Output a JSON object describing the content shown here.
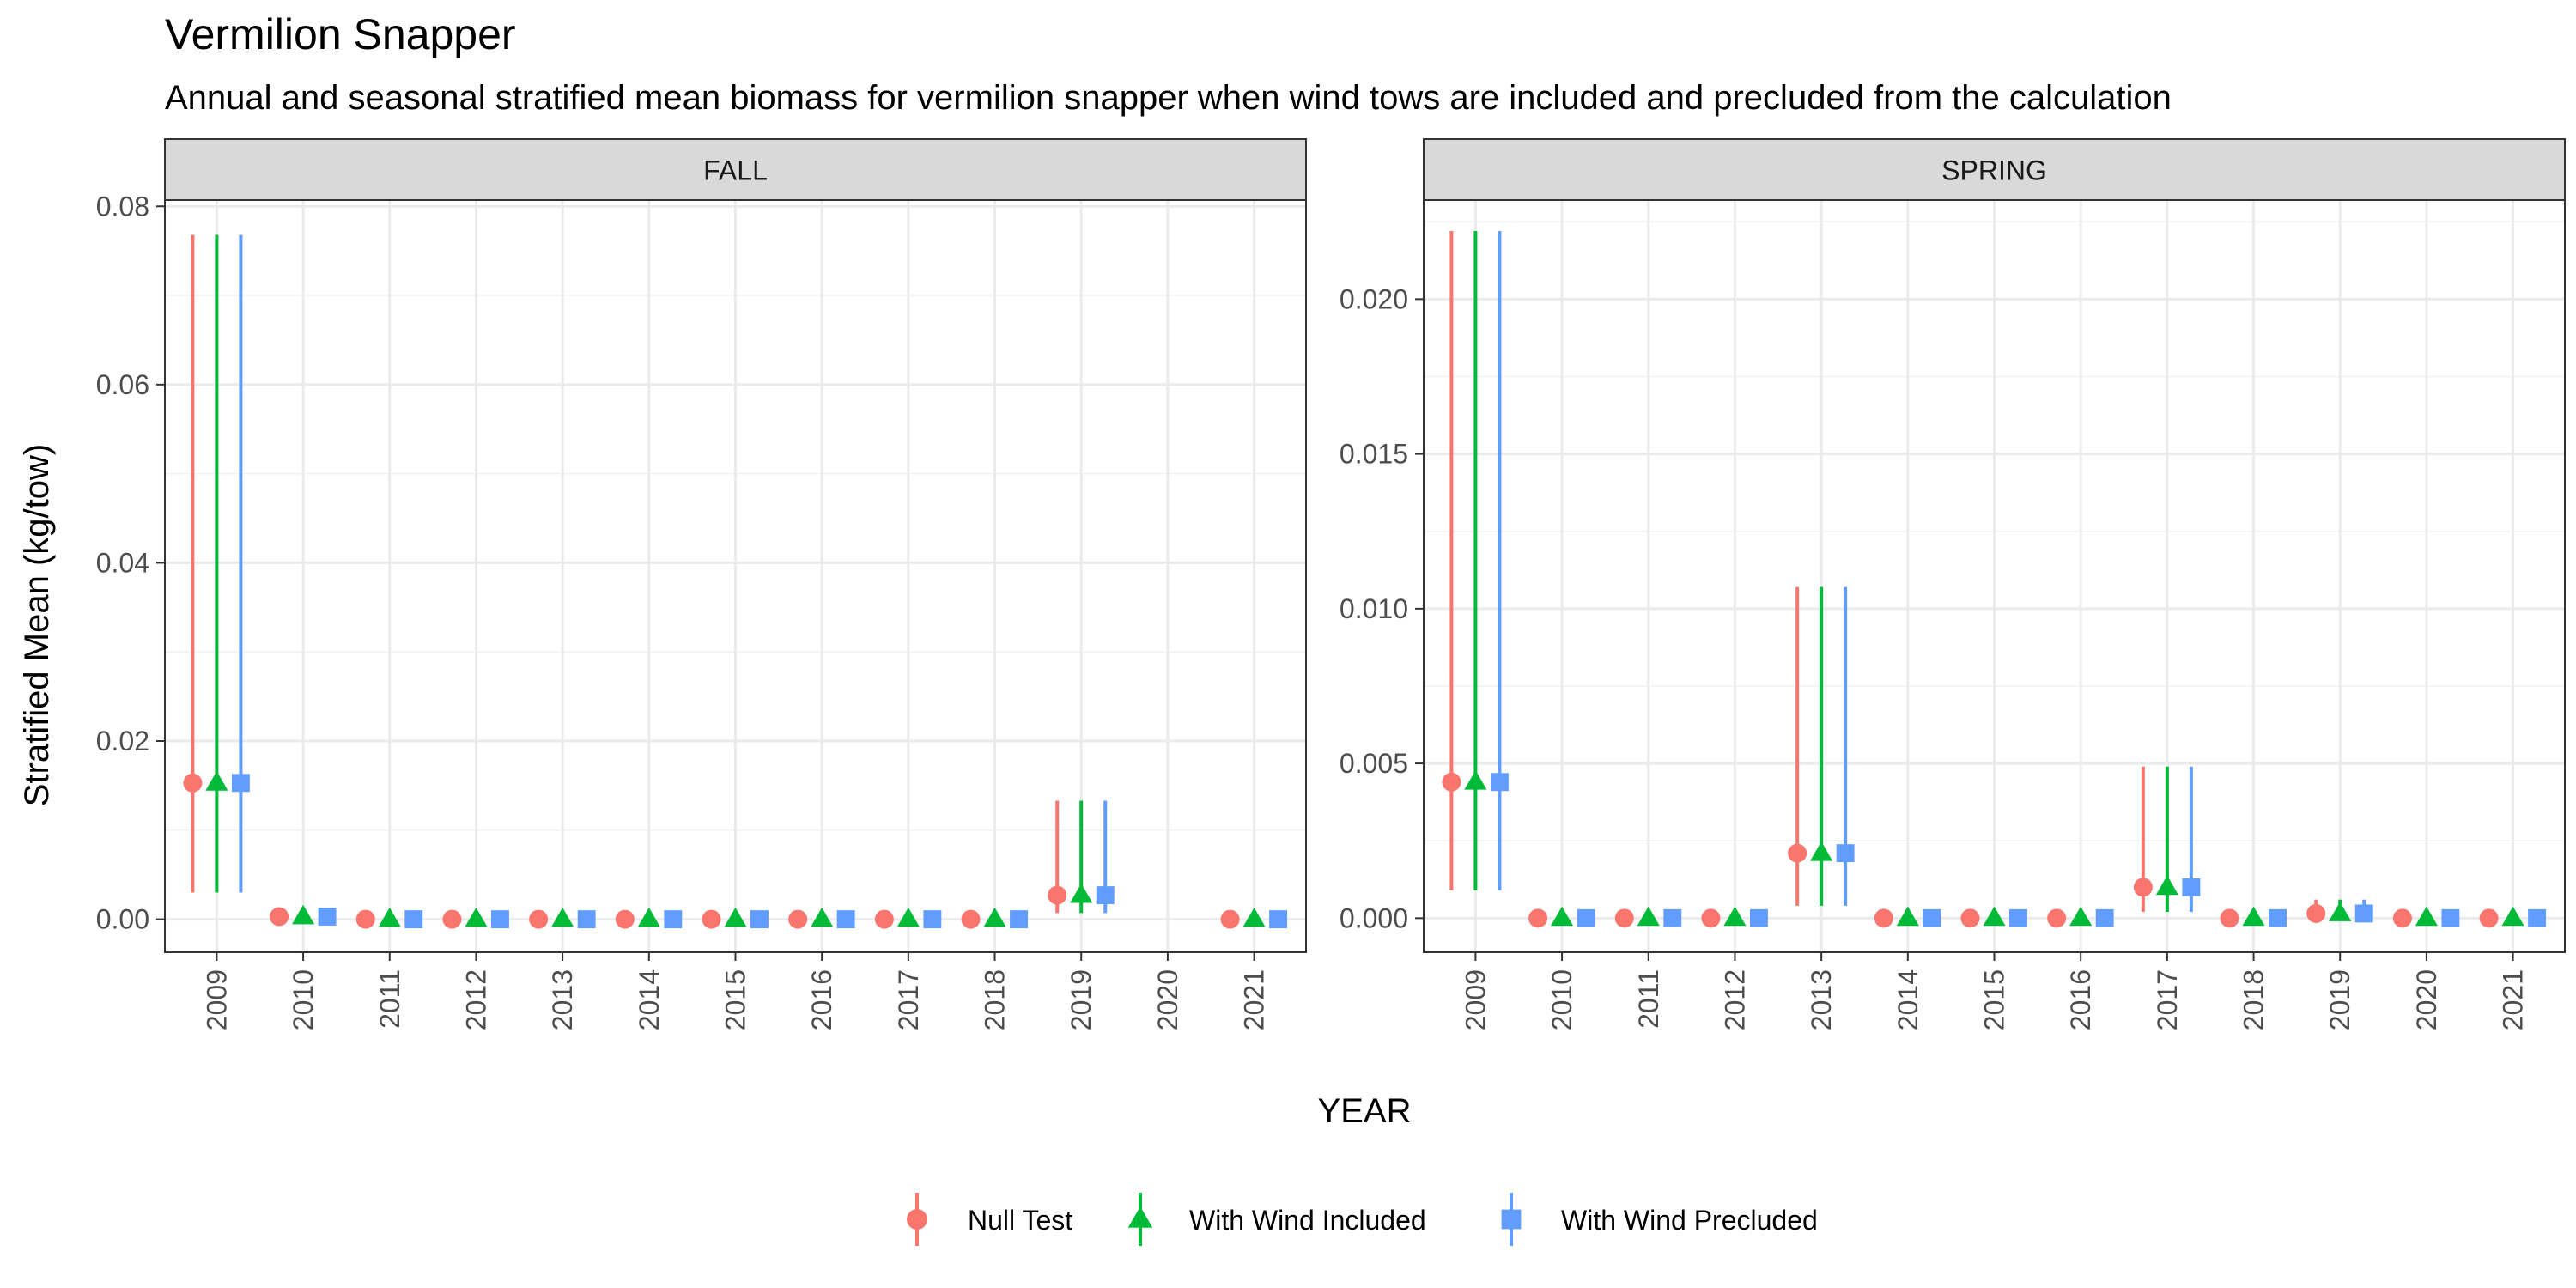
{
  "chart_data": {
    "type": "scatter",
    "title": "Vermilion Snapper",
    "subtitle": "Annual and seasonal stratified mean biomass for vermilion snapper when wind tows are included and precluded from the calculation",
    "xlabel": "YEAR",
    "ylabel": "Stratified Mean (kg/tow)",
    "legend_position": "bottom",
    "grid": true,
    "x_categories": [
      "2009",
      "2010",
      "2011",
      "2012",
      "2013",
      "2014",
      "2015",
      "2016",
      "2017",
      "2018",
      "2019",
      "2020",
      "2021"
    ],
    "series": [
      {
        "name": "Null Test",
        "color": "#F8766D",
        "shape": "circle"
      },
      {
        "name": "With Wind Included",
        "color": "#00BA38",
        "shape": "triangle"
      },
      {
        "name": "With Wind Precluded",
        "color": "#619CFF",
        "shape": "square"
      }
    ],
    "panels": [
      {
        "label": "FALL",
        "ylim": [
          -0.0037,
          0.0807
        ],
        "y_ticks": [
          0,
          0.02,
          0.04,
          0.06,
          0.08
        ],
        "y_tick_labels": [
          "0.00",
          "0.02",
          "0.04",
          "0.06",
          "0.08"
        ],
        "data": [
          {
            "year": "2009",
            "values": [
              0.0153,
              0.0153,
              0.0153
            ],
            "lower": [
              0.003,
              0.003,
              0.003
            ],
            "upper": [
              0.0768,
              0.0768,
              0.0768
            ]
          },
          {
            "year": "2010",
            "values": [
              0.0003,
              0.0003,
              0.0003
            ],
            "lower": [
              0,
              0,
              0
            ],
            "upper": [
              0.0006,
              0.0006,
              0.0006
            ]
          },
          {
            "year": "2011",
            "values": [
              0,
              0,
              0
            ],
            "lower": [
              0,
              0,
              0
            ],
            "upper": [
              0,
              0,
              0
            ]
          },
          {
            "year": "2012",
            "values": [
              0,
              0,
              0
            ],
            "lower": [
              0,
              0,
              0
            ],
            "upper": [
              0,
              0,
              0
            ]
          },
          {
            "year": "2013",
            "values": [
              0,
              0,
              0
            ],
            "lower": [
              0,
              0,
              0
            ],
            "upper": [
              0,
              0,
              0
            ]
          },
          {
            "year": "2014",
            "values": [
              0,
              0,
              0
            ],
            "lower": [
              0,
              0,
              0
            ],
            "upper": [
              0,
              0,
              0
            ]
          },
          {
            "year": "2015",
            "values": [
              0,
              0,
              0
            ],
            "lower": [
              0,
              0,
              0
            ],
            "upper": [
              0,
              0,
              0
            ]
          },
          {
            "year": "2016",
            "values": [
              0,
              0,
              0
            ],
            "lower": [
              0,
              0,
              0
            ],
            "upper": [
              0,
              0,
              0
            ]
          },
          {
            "year": "2017",
            "values": [
              0,
              0,
              0
            ],
            "lower": [
              0,
              0,
              0
            ],
            "upper": [
              0,
              0,
              0
            ]
          },
          {
            "year": "2018",
            "values": [
              0,
              0,
              0
            ],
            "lower": [
              0,
              0,
              0
            ],
            "upper": [
              0,
              0,
              0
            ]
          },
          {
            "year": "2019",
            "values": [
              0.0027,
              0.0027,
              0.0027
            ],
            "lower": [
              0.0007,
              0.0007,
              0.0007
            ],
            "upper": [
              0.0133,
              0.0133,
              0.0133
            ]
          },
          {
            "year": "2021",
            "values": [
              0,
              0,
              0
            ],
            "lower": [
              0,
              0,
              0
            ],
            "upper": [
              0,
              0,
              0
            ]
          }
        ]
      },
      {
        "label": "SPRING",
        "ylim": [
          -0.0011,
          0.0232
        ],
        "y_ticks": [
          0,
          0.005,
          0.01,
          0.015,
          0.02
        ],
        "y_tick_labels": [
          "0.000",
          "0.005",
          "0.010",
          "0.015",
          "0.020"
        ],
        "data": [
          {
            "year": "2009",
            "values": [
              0.0044,
              0.0044,
              0.0044
            ],
            "lower": [
              0.0009,
              0.0009,
              0.0009
            ],
            "upper": [
              0.0222,
              0.0222,
              0.0222
            ]
          },
          {
            "year": "2010",
            "values": [
              0,
              0,
              0
            ],
            "lower": [
              0,
              0,
              0
            ],
            "upper": [
              0,
              0,
              0
            ]
          },
          {
            "year": "2011",
            "values": [
              0,
              0,
              0
            ],
            "lower": [
              0,
              0,
              0
            ],
            "upper": [
              0,
              0,
              0
            ]
          },
          {
            "year": "2012",
            "values": [
              0,
              0,
              0
            ],
            "lower": [
              0,
              0,
              0
            ],
            "upper": [
              0,
              0,
              0
            ]
          },
          {
            "year": "2013",
            "values": [
              0.0021,
              0.0021,
              0.0021
            ],
            "lower": [
              0.0004,
              0.0004,
              0.0004
            ],
            "upper": [
              0.0107,
              0.0107,
              0.0107
            ]
          },
          {
            "year": "2014",
            "values": [
              0,
              0,
              0
            ],
            "lower": [
              0,
              0,
              0
            ],
            "upper": [
              0,
              0,
              0
            ]
          },
          {
            "year": "2015",
            "values": [
              0,
              0,
              0
            ],
            "lower": [
              0,
              0,
              0
            ],
            "upper": [
              0,
              0,
              0
            ]
          },
          {
            "year": "2016",
            "values": [
              0,
              0,
              0
            ],
            "lower": [
              0,
              0,
              0
            ],
            "upper": [
              0,
              0,
              0
            ]
          },
          {
            "year": "2017",
            "values": [
              0.001,
              0.001,
              0.001
            ],
            "lower": [
              0.0002,
              0.0002,
              0.0002
            ],
            "upper": [
              0.0049,
              0.0049,
              0.0049
            ]
          },
          {
            "year": "2018",
            "values": [
              0,
              0,
              0
            ],
            "lower": [
              0,
              0,
              0
            ],
            "upper": [
              0,
              0,
              0
            ]
          },
          {
            "year": "2019",
            "values": [
              0.00015,
              0.00015,
              0.00015
            ],
            "lower": [
              0,
              0,
              0
            ],
            "upper": [
              0.0006,
              0.0006,
              0.0006
            ]
          },
          {
            "year": "2020",
            "values": [
              0,
              0,
              0
            ],
            "lower": [
              0,
              0,
              0
            ],
            "upper": [
              0,
              0,
              0
            ]
          },
          {
            "year": "2021",
            "values": [
              0,
              0,
              0
            ],
            "lower": [
              0,
              0,
              0
            ],
            "upper": [
              0,
              0,
              0
            ]
          }
        ]
      }
    ]
  }
}
